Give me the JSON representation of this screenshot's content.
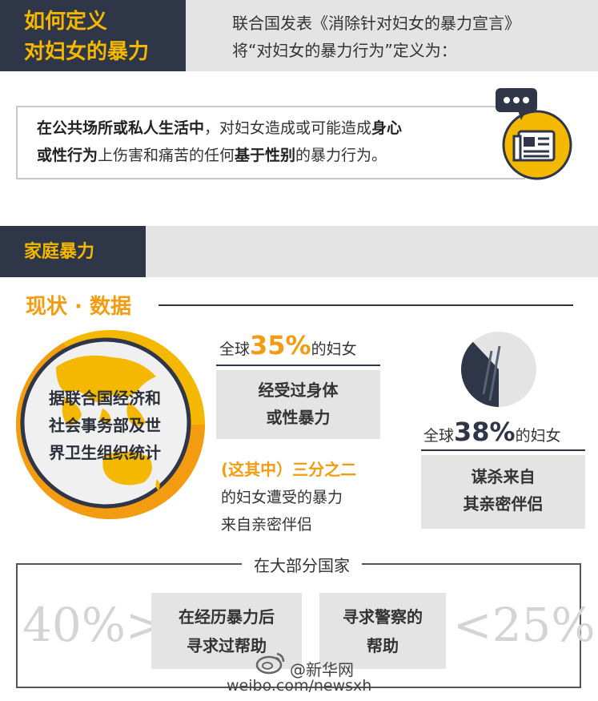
{
  "colors": {
    "navy": "#2f3648",
    "yellow": "#f5b800",
    "orange": "#f39c12",
    "light_gray": "#e4e4e4",
    "faded_gray": "#d4d4d4"
  },
  "section1": {
    "title_line1": "如何定义",
    "title_line2": "对妇女的暴力",
    "intro_line1": "联合国发表《消除针对妇女的暴力宣言》",
    "intro_line2": "将“对妇女的暴力行为”定义为：",
    "definition": {
      "p1_bold": "在公共场所或私人生活中",
      "p2": "，对妇女造成或可能造成",
      "p3_bold": "身心",
      "p4_bold": "或性行为",
      "p5": "上伤害和痛苦的任何",
      "p6_bold": "基于性别",
      "p7": "的暴力行为。"
    },
    "icon": "newspaper-chat-icon"
  },
  "section2": {
    "title": "家庭暴力",
    "status_title": "现状 · 数据",
    "source_line1": "据联合国经济和",
    "source_line2": "社会事务部及世",
    "source_line3": "界卫生组织统计",
    "stat1": {
      "prefix": "全球",
      "value": "35%",
      "suffix": "的妇女",
      "desc_line1": "经受过身体",
      "desc_line2": "或性暴力",
      "share_fraction": 0.667,
      "sub_head": "(这其中）三分之二",
      "sub_line1": "的妇女遭受的暴力",
      "sub_line2": "来自亲密伴侣"
    },
    "stat2": {
      "prefix": "全球",
      "value": "38%",
      "suffix": "的妇女",
      "fraction": 0.38,
      "desc_line1": "谋杀来自",
      "desc_line2": "其亲密伴侣"
    }
  },
  "bottom": {
    "title": "在大部分国家",
    "left_value": "40%>",
    "left_label_line1": "在经历暴力后",
    "left_label_line2": "寻求过帮助",
    "right_label_line1": "寻求警察的",
    "right_label_line2": "帮助",
    "right_value": "<25%"
  },
  "watermark": {
    "name": "@新华网",
    "url": "weibo.com/newsxh"
  }
}
